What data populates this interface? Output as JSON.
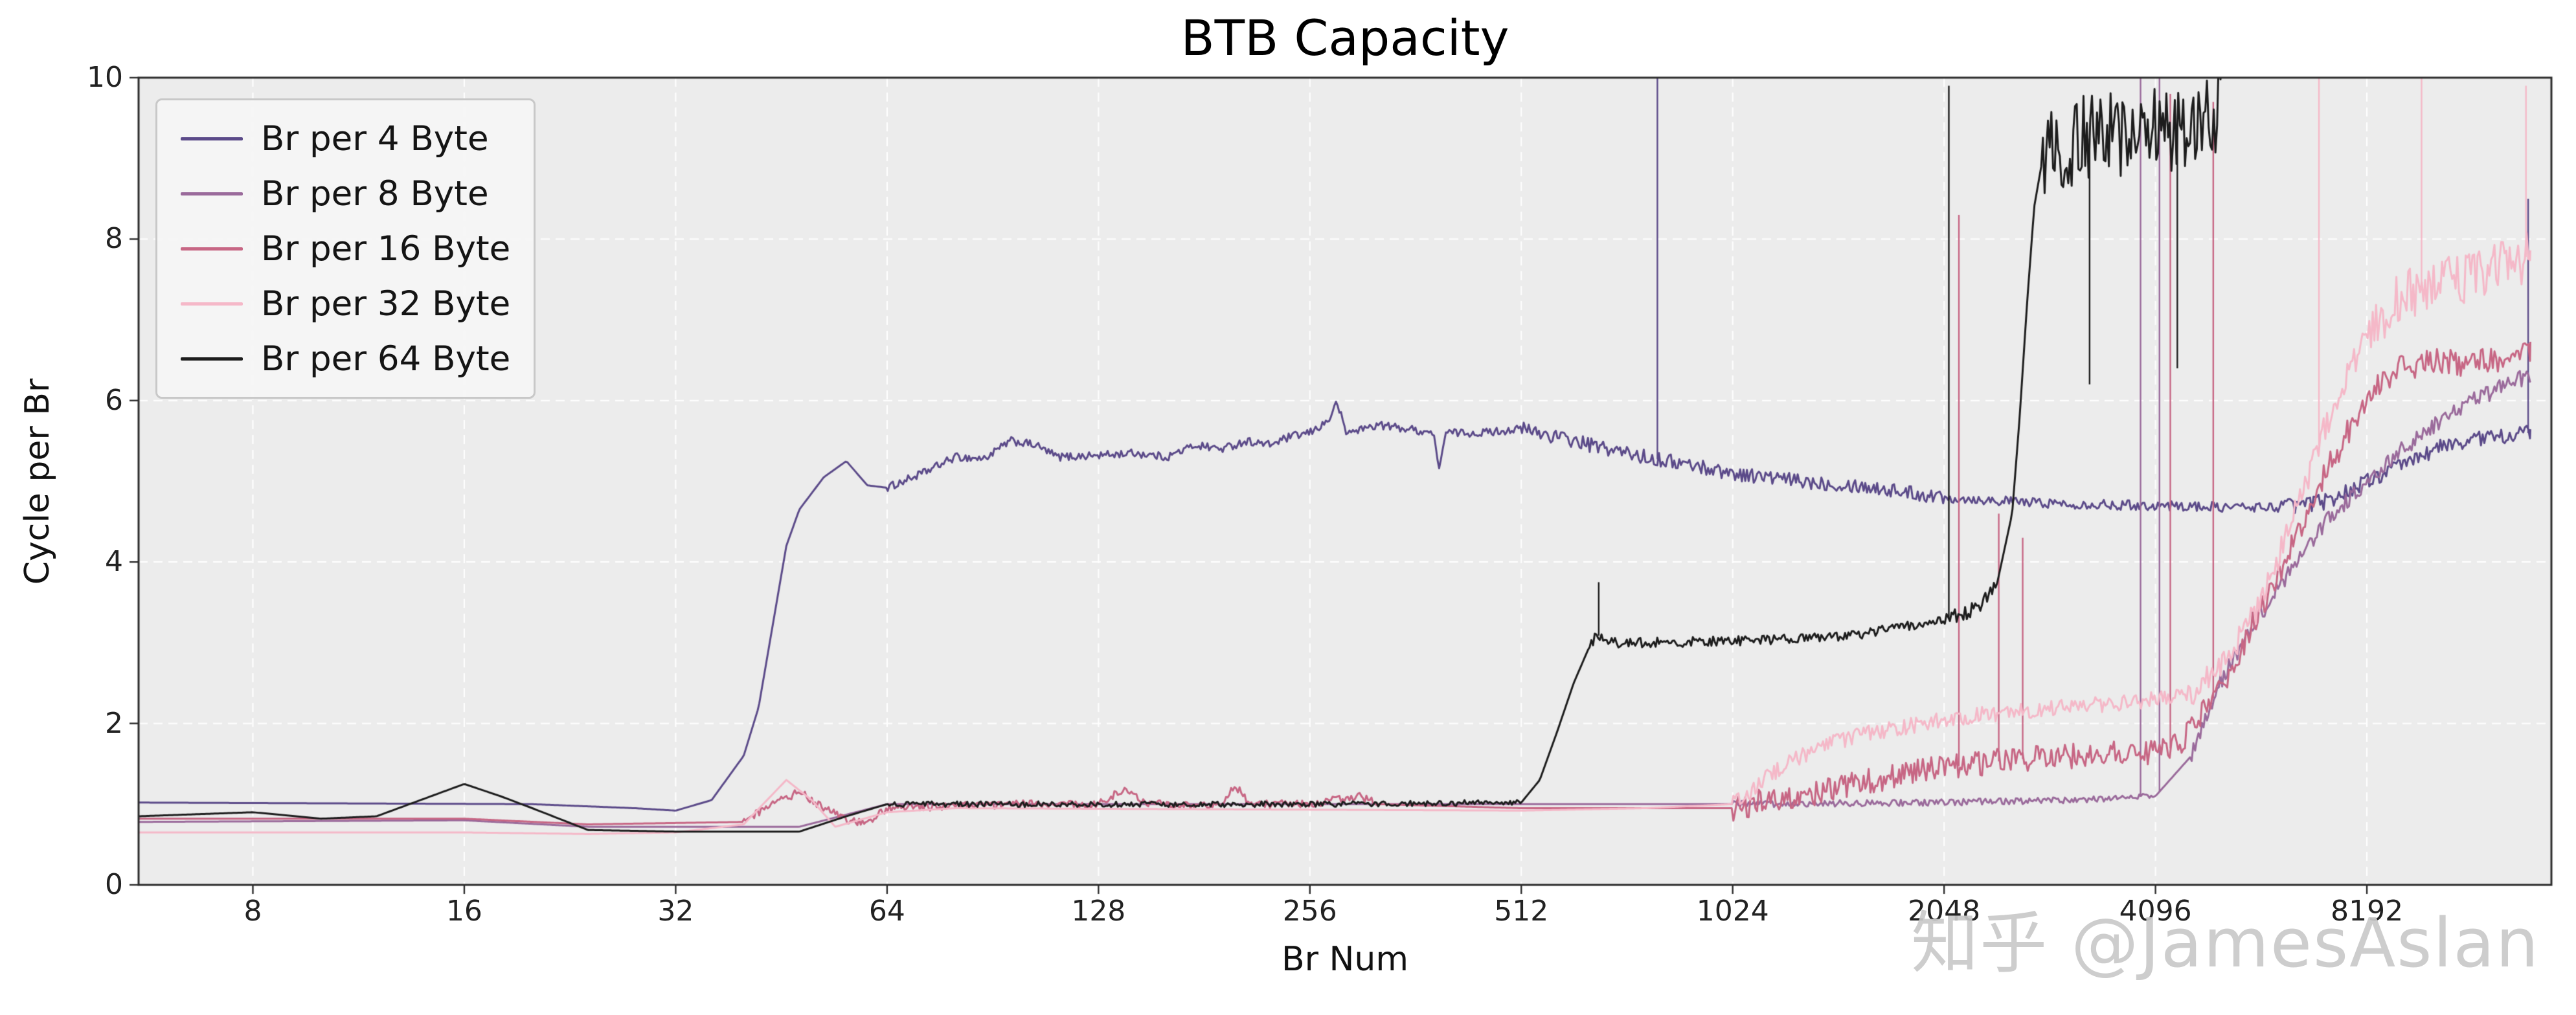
{
  "watermark": {
    "text": "知乎 @JamesAslan"
  },
  "chart_data": {
    "type": "line",
    "title": "BTB Capacity",
    "xlabel": "Br Num",
    "ylabel": "Cycle per Br",
    "x_scale": "log2",
    "xlim": [
      5.5,
      15000
    ],
    "ylim": [
      0,
      10
    ],
    "x_ticks": [
      8,
      16,
      32,
      64,
      128,
      256,
      512,
      1024,
      2048,
      4096,
      8192
    ],
    "y_ticks": [
      0,
      2,
      4,
      6,
      8,
      10
    ],
    "grid": {
      "style": "dashed",
      "color": "#ffffff"
    },
    "plot_background": "#ececec",
    "spine_color": "#2b2b2b",
    "legend_position": "upper-left",
    "series": [
      {
        "name": "Br per 4 Byte",
        "color": "#5b4a89",
        "keypoints": [
          [
            5.5,
            1.02
          ],
          [
            20,
            1.0
          ],
          [
            28,
            0.95
          ],
          [
            32,
            0.92
          ],
          [
            36,
            1.05
          ],
          [
            40,
            1.6
          ],
          [
            42,
            2.2
          ],
          [
            46,
            4.2
          ],
          [
            48,
            4.65
          ],
          [
            52,
            5.05
          ],
          [
            56,
            5.25
          ],
          [
            60,
            4.95
          ],
          [
            64,
            4.92
          ],
          [
            72,
            5.1
          ],
          [
            80,
            5.3
          ],
          [
            88,
            5.28
          ],
          [
            96,
            5.5
          ],
          [
            104,
            5.45
          ],
          [
            112,
            5.3
          ],
          [
            128,
            5.32
          ],
          [
            144,
            5.35
          ],
          [
            160,
            5.3
          ],
          [
            176,
            5.45
          ],
          [
            192,
            5.4
          ],
          [
            208,
            5.5
          ],
          [
            224,
            5.45
          ],
          [
            240,
            5.55
          ],
          [
            256,
            5.6
          ],
          [
            272,
            5.75
          ],
          [
            280,
            5.98
          ],
          [
            288,
            5.6
          ],
          [
            304,
            5.65
          ],
          [
            320,
            5.7
          ],
          [
            352,
            5.65
          ],
          [
            384,
            5.6
          ],
          [
            390,
            5.15
          ],
          [
            400,
            5.6
          ],
          [
            448,
            5.6
          ],
          [
            512,
            5.65
          ],
          [
            576,
            5.55
          ],
          [
            640,
            5.45
          ],
          [
            768,
            5.3
          ],
          [
            896,
            5.2
          ],
          [
            1024,
            5.1
          ],
          [
            1280,
            5.0
          ],
          [
            1536,
            4.95
          ],
          [
            2048,
            4.8
          ],
          [
            2560,
            4.75
          ],
          [
            3072,
            4.72
          ],
          [
            4096,
            4.7
          ],
          [
            5120,
            4.68
          ],
          [
            6144,
            4.68
          ],
          [
            7168,
            4.75
          ],
          [
            8192,
            5.0
          ],
          [
            9216,
            5.2
          ],
          [
            10240,
            5.4
          ],
          [
            11264,
            5.5
          ],
          [
            12288,
            5.55
          ],
          [
            14000,
            5.6
          ]
        ],
        "noise": [
          [
            64,
            512,
            0.05
          ],
          [
            512,
            2048,
            0.09
          ],
          [
            2048,
            6144,
            0.06
          ],
          [
            6144,
            14000,
            0.1
          ]
        ],
        "spikes": [
          [
            800,
            10.4
          ],
          [
            13900,
            8.5
          ]
        ]
      },
      {
        "name": "Br per 8 Byte",
        "color": "#9a6a9b",
        "keypoints": [
          [
            5.5,
            0.78
          ],
          [
            16,
            0.8
          ],
          [
            24,
            0.72
          ],
          [
            48,
            0.72
          ],
          [
            64,
            1.0
          ],
          [
            512,
            1.0
          ],
          [
            1024,
            1.0
          ],
          [
            2048,
            1.02
          ],
          [
            3072,
            1.05
          ],
          [
            4096,
            1.1
          ],
          [
            4608,
            1.6
          ],
          [
            5120,
            2.6
          ],
          [
            5632,
            3.2
          ],
          [
            6144,
            3.7
          ],
          [
            7168,
            4.5
          ],
          [
            8192,
            5.0
          ],
          [
            9216,
            5.4
          ],
          [
            10240,
            5.7
          ],
          [
            11264,
            5.95
          ],
          [
            12288,
            6.1
          ],
          [
            13312,
            6.25
          ],
          [
            14000,
            6.3
          ]
        ],
        "noise": [
          [
            1024,
            4096,
            0.04
          ],
          [
            4608,
            14000,
            0.1
          ]
        ],
        "spikes": [
          [
            3900,
            10.4
          ],
          [
            4150,
            10.4
          ]
        ]
      },
      {
        "name": "Br per 16 Byte",
        "color": "#c76684",
        "keypoints": [
          [
            5.5,
            0.82
          ],
          [
            16,
            0.82
          ],
          [
            24,
            0.75
          ],
          [
            40,
            0.78
          ],
          [
            44,
            1.0
          ],
          [
            48,
            1.15
          ],
          [
            52,
            0.95
          ],
          [
            56,
            0.8
          ],
          [
            60,
            0.75
          ],
          [
            64,
            0.95
          ],
          [
            96,
            1.0
          ],
          [
            128,
            1.0
          ],
          [
            140,
            1.2
          ],
          [
            150,
            1.0
          ],
          [
            192,
            1.0
          ],
          [
            200,
            1.25
          ],
          [
            210,
            1.0
          ],
          [
            256,
            1.0
          ],
          [
            300,
            1.1
          ],
          [
            320,
            1.0
          ],
          [
            512,
            0.95
          ],
          [
            1024,
            0.95
          ],
          [
            1152,
            1.05
          ],
          [
            1280,
            1.1
          ],
          [
            1536,
            1.25
          ],
          [
            1792,
            1.38
          ],
          [
            2048,
            1.45
          ],
          [
            2560,
            1.55
          ],
          [
            3072,
            1.6
          ],
          [
            4096,
            1.65
          ],
          [
            4352,
            1.7
          ],
          [
            4608,
            1.9
          ],
          [
            5120,
            2.5
          ],
          [
            5632,
            3.2
          ],
          [
            6144,
            3.9
          ],
          [
            6656,
            4.5
          ],
          [
            7168,
            5.1
          ],
          [
            7680,
            5.6
          ],
          [
            8192,
            6.0
          ],
          [
            8704,
            6.25
          ],
          [
            9216,
            6.4
          ],
          [
            10240,
            6.5
          ],
          [
            11264,
            6.45
          ],
          [
            12288,
            6.5
          ],
          [
            14000,
            6.6
          ]
        ],
        "noise": [
          [
            40,
            320,
            0.05
          ],
          [
            1024,
            4608,
            0.16
          ],
          [
            4608,
            9216,
            0.18
          ],
          [
            9216,
            14000,
            0.16
          ]
        ],
        "spikes": [
          [
            2150,
            8.3
          ],
          [
            2450,
            4.6
          ],
          [
            2650,
            4.3
          ],
          [
            4300,
            9.8
          ],
          [
            4950,
            9.7
          ]
        ]
      },
      {
        "name": "Br per 32 Byte",
        "color": "#f5b8c8",
        "keypoints": [
          [
            5.5,
            0.65
          ],
          [
            16,
            0.65
          ],
          [
            24,
            0.63
          ],
          [
            32,
            0.65
          ],
          [
            40,
            0.75
          ],
          [
            46,
            1.3
          ],
          [
            50,
            1.05
          ],
          [
            54,
            0.72
          ],
          [
            64,
            0.9
          ],
          [
            80,
            0.95
          ],
          [
            512,
            0.92
          ],
          [
            768,
            0.95
          ],
          [
            1024,
            1.0
          ],
          [
            1088,
            1.15
          ],
          [
            1152,
            1.35
          ],
          [
            1280,
            1.6
          ],
          [
            1408,
            1.75
          ],
          [
            1536,
            1.85
          ],
          [
            1792,
            1.95
          ],
          [
            2048,
            2.05
          ],
          [
            2560,
            2.15
          ],
          [
            3072,
            2.2
          ],
          [
            4096,
            2.3
          ],
          [
            4608,
            2.4
          ],
          [
            5120,
            2.7
          ],
          [
            5632,
            3.3
          ],
          [
            6144,
            4.1
          ],
          [
            6656,
            4.9
          ],
          [
            7168,
            5.7
          ],
          [
            7680,
            6.3
          ],
          [
            8192,
            6.8
          ],
          [
            8704,
            7.1
          ],
          [
            9216,
            7.3
          ],
          [
            10240,
            7.45
          ],
          [
            11264,
            7.5
          ],
          [
            12288,
            7.6
          ],
          [
            14000,
            7.8
          ]
        ],
        "noise": [
          [
            1024,
            4608,
            0.1
          ],
          [
            4608,
            8192,
            0.18
          ],
          [
            8192,
            14000,
            0.32
          ]
        ],
        "spikes": [
          [
            7000,
            10.3
          ],
          [
            9800,
            10.3
          ],
          [
            13800,
            9.9
          ]
        ]
      },
      {
        "name": "Br per 64 Byte",
        "color": "#1c1c1c",
        "keypoints": [
          [
            5.5,
            0.85
          ],
          [
            8,
            0.9
          ],
          [
            10,
            0.82
          ],
          [
            12,
            0.85
          ],
          [
            16,
            1.25
          ],
          [
            18,
            1.1
          ],
          [
            20,
            0.95
          ],
          [
            24,
            0.68
          ],
          [
            32,
            0.66
          ],
          [
            48,
            0.66
          ],
          [
            56,
            0.85
          ],
          [
            64,
            1.0
          ],
          [
            128,
            1.0
          ],
          [
            256,
            1.0
          ],
          [
            512,
            1.02
          ],
          [
            544,
            1.3
          ],
          [
            576,
            1.9
          ],
          [
            608,
            2.5
          ],
          [
            640,
            2.95
          ],
          [
            656,
            3.1
          ],
          [
            688,
            3.0
          ],
          [
            768,
            3.0
          ],
          [
            1024,
            3.02
          ],
          [
            1280,
            3.05
          ],
          [
            1536,
            3.1
          ],
          [
            1792,
            3.2
          ],
          [
            2048,
            3.3
          ],
          [
            2176,
            3.35
          ],
          [
            2304,
            3.45
          ],
          [
            2432,
            3.7
          ],
          [
            2560,
            4.6
          ],
          [
            2624,
            5.8
          ],
          [
            2688,
            7.2
          ],
          [
            2752,
            8.4
          ],
          [
            2816,
            8.9
          ],
          [
            2944,
            9.1
          ],
          [
            3072,
            9.2
          ],
          [
            3584,
            9.3
          ],
          [
            4096,
            9.35
          ],
          [
            4608,
            9.4
          ],
          [
            5000,
            9.6
          ],
          [
            5100,
            10.5
          ]
        ],
        "noise": [
          [
            64,
            512,
            0.035
          ],
          [
            640,
            2048,
            0.06
          ],
          [
            2048,
            2432,
            0.09
          ],
          [
            2816,
            5100,
            0.55
          ]
        ],
        "spikes": [
          [
            660,
            3.75
          ],
          [
            2080,
            9.9
          ],
          [
            3300,
            6.2
          ],
          [
            4400,
            6.4
          ]
        ]
      }
    ]
  }
}
